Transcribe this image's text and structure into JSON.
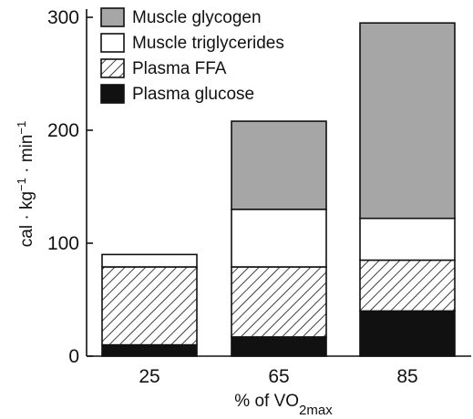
{
  "chart_data": {
    "type": "bar",
    "stacked": true,
    "categories": [
      "25",
      "65",
      "85"
    ],
    "series": [
      {
        "name": "Plasma glucose",
        "values": [
          10,
          17,
          40
        ],
        "fill": "solid",
        "color": "#111111"
      },
      {
        "name": "Plasma FFA",
        "values": [
          69,
          62,
          45
        ],
        "fill": "hatched",
        "color": "#111111"
      },
      {
        "name": "Muscle triglycerides",
        "values": [
          11,
          51,
          37
        ],
        "fill": "solid",
        "color": "#ffffff"
      },
      {
        "name": "Muscle glycogen",
        "values": [
          0,
          78,
          173
        ],
        "fill": "solid",
        "color": "#a6a6a6"
      }
    ],
    "legend_order": [
      "Muscle glycogen",
      "Muscle triglycerides",
      "Plasma FFA",
      "Plasma glucose"
    ],
    "legend_position": "top-left",
    "ylim": [
      0,
      300
    ],
    "yticks": [
      0,
      100,
      200,
      300
    ],
    "ylabel": {
      "pre": "cal · kg",
      "sup1": "−1",
      "mid": " · min",
      "sup2": "−1"
    },
    "xlabel": {
      "pre": "% of VO",
      "sub": "2max"
    },
    "grid": false
  }
}
